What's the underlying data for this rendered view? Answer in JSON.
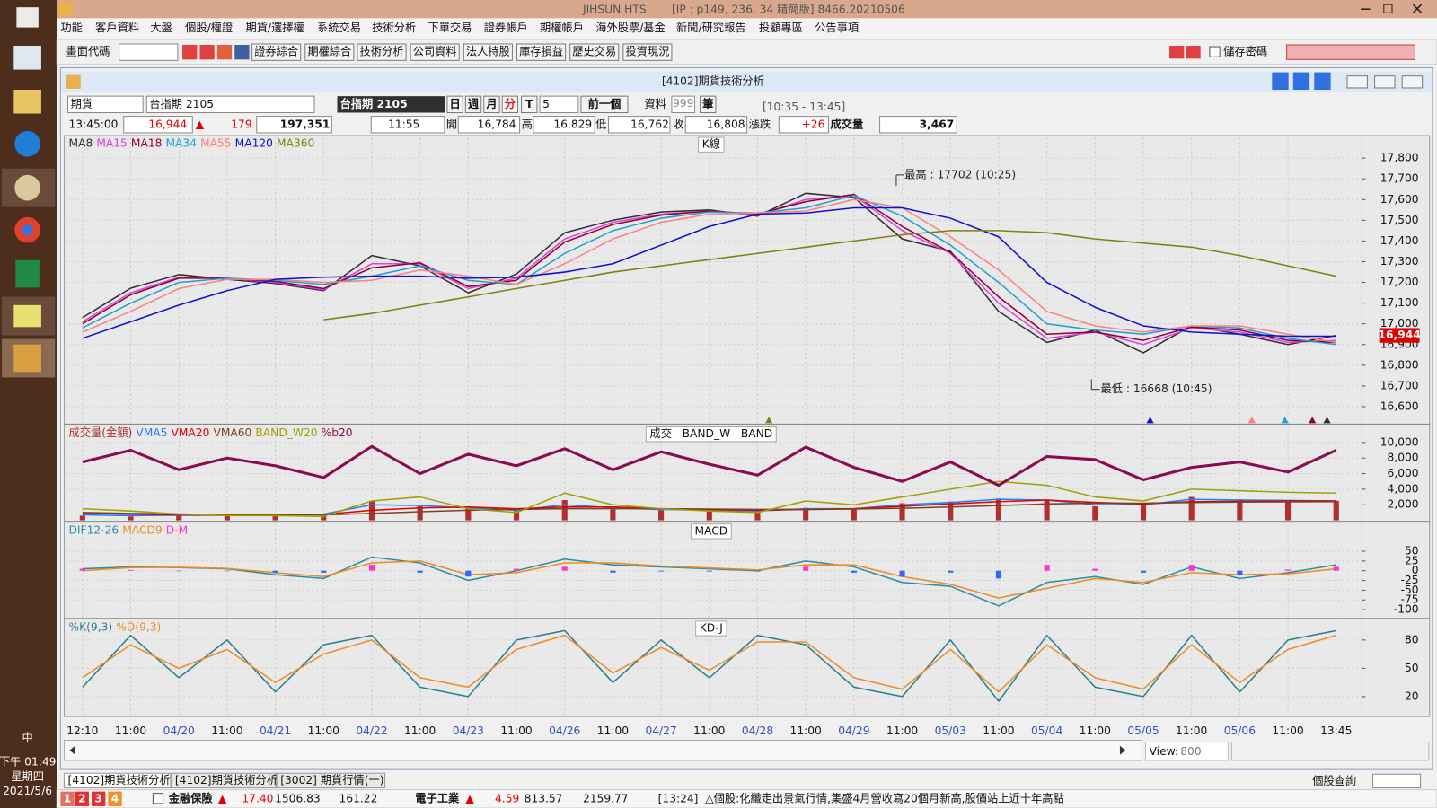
{
  "taskbar": {
    "ime": "中",
    "time": "下午 01:49",
    "weekday": "星期四",
    "date": "2021/5/6"
  },
  "app": {
    "title": "JIHSUN HTS",
    "info": "[IP : p149, 236, 34 精簡版] 8466.20210506"
  },
  "menu": [
    "功能",
    "客戶資料",
    "大盤",
    "個股/權證",
    "期貨/選擇權",
    "系統交易",
    "技術分析",
    "下單交易",
    "證券帳戶",
    "期權帳戶",
    "海外股票/基金",
    "新聞/研究報告",
    "投顧專區",
    "公告事項"
  ],
  "toolbar": {
    "code_label": "畫面代碼",
    "buttons": [
      "證券綜合",
      "期權綜合",
      "技術分析",
      "公司資料",
      "法人持股",
      "庫存損益",
      "歷史交易",
      "投資現況"
    ],
    "save_password": "儲存密碼"
  },
  "window": {
    "title": "[4102]期貨技術分析",
    "market": "期貨",
    "symbol": "台指期 2105",
    "symbol_name": "台指期 2105",
    "periods": [
      "日",
      "週",
      "月",
      "分",
      "T"
    ],
    "interval": "5",
    "prev": "前一個",
    "data_label": "資料",
    "data_count": "999",
    "data_unit": "筆",
    "time_range": "[10:35 - 13:45]"
  },
  "quote": {
    "time": "13:45:00",
    "last": "16,944",
    "arrow": "▲",
    "change": "179",
    "volume_total": "197,351",
    "bar_time": "11:55",
    "open_label": "開",
    "open": "16,784",
    "high_label": "高",
    "high": "16,829",
    "low_label": "低",
    "low": "16,762",
    "close_label": "收",
    "close": "16,808",
    "change_label": "漲跌",
    "bar_change": "+26",
    "volume_label": "成交量",
    "bar_volume": "3,467"
  },
  "chart_data": [
    {
      "type": "line",
      "title": "K線",
      "categories": [
        "12:10",
        "11:00",
        "04/20",
        "11:00",
        "04/21",
        "11:00",
        "04/22",
        "11:00",
        "04/23",
        "11:00",
        "04/26",
        "11:00",
        "04/27",
        "11:00",
        "04/28",
        "11:00",
        "04/29",
        "11:00",
        "05/03",
        "11:00",
        "05/04",
        "11:00",
        "05/05",
        "11:00",
        "05/06",
        "11:00",
        "13:45"
      ],
      "series": [
        {
          "name": "MA8",
          "color": "#303030",
          "values": [
            17030,
            17172,
            17238,
            17215,
            17195,
            17160,
            17330,
            17280,
            17150,
            17240,
            17440,
            17500,
            17540,
            17550,
            17520,
            17630,
            17610,
            17410,
            17350,
            17060,
            16910,
            16970,
            16860,
            16990,
            16950,
            16900,
            16944
          ]
        },
        {
          "name": "MA15",
          "color": "#e040e0",
          "values": [
            17010,
            17150,
            17225,
            17220,
            17200,
            17165,
            17290,
            17290,
            17170,
            17220,
            17410,
            17490,
            17530,
            17545,
            17525,
            17600,
            17620,
            17450,
            17340,
            17100,
            16930,
            16960,
            16900,
            16980,
            16960,
            16910,
            16920
          ]
        },
        {
          "name": "MA18",
          "color": "#900030",
          "values": [
            17000,
            17140,
            17220,
            17220,
            17205,
            17170,
            17270,
            17295,
            17180,
            17210,
            17395,
            17480,
            17525,
            17545,
            17530,
            17590,
            17625,
            17470,
            17345,
            17130,
            16950,
            16960,
            16920,
            16985,
            16970,
            16920,
            16910
          ]
        },
        {
          "name": "MA34",
          "color": "#20a0d0",
          "values": [
            16980,
            17100,
            17200,
            17220,
            17210,
            17190,
            17230,
            17280,
            17210,
            17190,
            17340,
            17450,
            17510,
            17540,
            17535,
            17560,
            17620,
            17520,
            17380,
            17200,
            17000,
            16970,
            16950,
            16990,
            16980,
            16930,
            16900
          ]
        },
        {
          "name": "MA55",
          "color": "#ff8080",
          "values": [
            16960,
            17060,
            17170,
            17215,
            17215,
            17200,
            17210,
            17260,
            17230,
            17190,
            17290,
            17410,
            17490,
            17530,
            17535,
            17545,
            17600,
            17560,
            17420,
            17260,
            17060,
            16990,
            16960,
            16990,
            16990,
            16950,
            16910
          ]
        },
        {
          "name": "MA120",
          "color": "#1010d0",
          "values": [
            16930,
            17010,
            17090,
            17160,
            17215,
            17225,
            17230,
            17230,
            17220,
            17225,
            17250,
            17290,
            17380,
            17470,
            17530,
            17535,
            17560,
            17560,
            17510,
            17420,
            17200,
            17080,
            16990,
            16960,
            16950,
            16940,
            16940
          ]
        },
        {
          "name": "MA360",
          "color": "#808010",
          "values": [
            null,
            null,
            null,
            null,
            null,
            17020,
            17050,
            17090,
            17130,
            17170,
            17210,
            17250,
            17280,
            17310,
            17340,
            17370,
            17400,
            17430,
            17450,
            17450,
            17440,
            17410,
            17390,
            17370,
            17330,
            17280,
            17230
          ]
        }
      ],
      "ylim": [
        16520,
        17900
      ],
      "yticks": [
        {
          "value": 16600,
          "label": "16,600"
        },
        {
          "value": 16700,
          "label": "16,700"
        },
        {
          "value": 16800,
          "label": "16,800"
        },
        {
          "value": 16900,
          "label": "16,900"
        },
        {
          "value": 17000,
          "label": "17,000"
        },
        {
          "value": 17100,
          "label": "17,100"
        },
        {
          "value": 17200,
          "label": "17,200"
        },
        {
          "value": 17300,
          "label": "17,300"
        },
        {
          "value": 17400,
          "label": "17,400"
        },
        {
          "value": 17500,
          "label": "17,500"
        },
        {
          "value": 17600,
          "label": "17,600"
        },
        {
          "value": 17700,
          "label": "17,700"
        },
        {
          "value": 17800,
          "label": "17,800"
        }
      ],
      "grid": true,
      "annotations": [
        "最高 : 17702 (10:25)",
        "最低 : 16668 (10:45)"
      ]
    },
    {
      "type": "combo",
      "title": "成交   BAND_W   BAND",
      "series": [
        {
          "name": "成交量(金額)",
          "kind": "bar",
          "color": "#b03030",
          "values": [
            600,
            500,
            700,
            600,
            800,
            700,
            2500,
            1800,
            1500,
            1200,
            2600,
            1400,
            1300,
            1200,
            1100,
            1600,
            1500,
            2200,
            2400,
            2800,
            2600,
            1800,
            2000,
            3000,
            2700,
            2600,
            2500
          ]
        },
        {
          "name": "VMA5",
          "kind": "line",
          "color": "#2080ff",
          "values": [
            700,
            600,
            650,
            650,
            750,
            800,
            2000,
            1900,
            1600,
            1300,
            2000,
            1600,
            1400,
            1300,
            1200,
            1500,
            1500,
            2000,
            2300,
            2700,
            2600,
            2000,
            2000,
            2700,
            2600,
            2550,
            2500
          ]
        },
        {
          "name": "VMA20",
          "kind": "line",
          "color": "#e00000",
          "values": [
            900,
            800,
            700,
            650,
            700,
            750,
            1300,
            1600,
            1700,
            1500,
            1700,
            1700,
            1500,
            1400,
            1300,
            1400,
            1500,
            1800,
            2100,
            2400,
            2600,
            2300,
            2100,
            2400,
            2450,
            2480,
            2500
          ]
        },
        {
          "name": "VMA60",
          "kind": "line",
          "color": "#804020",
          "values": [
            1000,
            900,
            800,
            750,
            700,
            700,
            900,
            1100,
            1300,
            1400,
            1500,
            1500,
            1500,
            1450,
            1400,
            1400,
            1450,
            1550,
            1700,
            1900,
            2100,
            2200,
            2200,
            2300,
            2350,
            2380,
            2400
          ]
        },
        {
          "name": "BAND_W20",
          "kind": "line",
          "color": "#a0a000",
          "values": [
            1500,
            1200,
            800,
            600,
            600,
            500,
            2500,
            3000,
            1500,
            1000,
            3500,
            2000,
            1500,
            1200,
            1000,
            2500,
            2000,
            3000,
            4000,
            5000,
            4500,
            3000,
            2500,
            4000,
            3800,
            3600,
            3500
          ]
        },
        {
          "name": "%b20",
          "kind": "line",
          "width": 3,
          "color": "#8b0a50",
          "values": [
            7500,
            9000,
            6500,
            8000,
            7000,
            5500,
            9500,
            6000,
            8500,
            7000,
            9200,
            6500,
            8800,
            7200,
            5800,
            9400,
            6800,
            5000,
            7500,
            4500,
            8200,
            7800,
            5200,
            6800,
            7500,
            6200,
            9000
          ]
        }
      ],
      "ylim": [
        0,
        12000
      ],
      "yticks": [
        {
          "value": 2000,
          "label": "2,000"
        },
        {
          "value": 4000,
          "label": "4,000"
        },
        {
          "value": 6000,
          "label": "6,000"
        },
        {
          "value": 8000,
          "label": "8,000"
        },
        {
          "value": 10000,
          "label": "10,000"
        }
      ],
      "grid": true
    },
    {
      "type": "combo",
      "title": "MACD",
      "series": [
        {
          "name": "DIF12-26",
          "kind": "line",
          "color": "#2a8fa0",
          "values": [
            5,
            10,
            8,
            5,
            -10,
            -20,
            35,
            20,
            -25,
            0,
            30,
            15,
            10,
            5,
            0,
            25,
            10,
            -30,
            -40,
            -90,
            -30,
            -15,
            -35,
            10,
            -20,
            -5,
            15
          ]
        },
        {
          "name": "MACD9",
          "kind": "line",
          "color": "#f08a24",
          "values": [
            0,
            8,
            9,
            6,
            -5,
            -15,
            20,
            25,
            -10,
            -5,
            20,
            20,
            12,
            7,
            2,
            15,
            15,
            -15,
            -35,
            -70,
            -45,
            -20,
            -30,
            -5,
            -10,
            -8,
            5
          ]
        },
        {
          "name": "D-M",
          "kind": "bar",
          "color": "#ff33cc",
          "negative_color": "#3366ff",
          "values": [
            5,
            2,
            -1,
            -1,
            -5,
            -5,
            15,
            -5,
            -15,
            5,
            10,
            -5,
            -2,
            -2,
            -2,
            10,
            -5,
            -15,
            -5,
            -20,
            15,
            5,
            -5,
            15,
            -10,
            3,
            10
          ]
        }
      ],
      "ylim": [
        -120,
        120
      ],
      "yticks": [
        -100,
        -75,
        -50,
        -25,
        0,
        25,
        50
      ],
      "grid": true
    },
    {
      "type": "combo",
      "title": "KD-J",
      "series": [
        {
          "name": "%K(9,3)",
          "kind": "line",
          "color": "#2a7f8f",
          "values": [
            30,
            85,
            40,
            80,
            25,
            75,
            85,
            30,
            20,
            80,
            90,
            35,
            80,
            40,
            85,
            75,
            30,
            20,
            80,
            15,
            85,
            30,
            20,
            85,
            25,
            80,
            90
          ]
        },
        {
          "name": "%D(9,3)",
          "kind": "line",
          "color": "#f08a24",
          "values": [
            40,
            75,
            50,
            70,
            35,
            65,
            80,
            40,
            30,
            70,
            85,
            45,
            72,
            48,
            78,
            78,
            40,
            28,
            70,
            25,
            75,
            40,
            28,
            75,
            35,
            70,
            85
          ]
        }
      ],
      "ylim": [
        0,
        100
      ],
      "yticks": [
        20,
        50,
        80
      ],
      "grid": true
    }
  ],
  "view": {
    "label": "View:",
    "value": "800"
  },
  "tabs": [
    "[4102]期貨技術分析",
    "[4102]期貨技術分析",
    "[3002] 期貨行情(一)"
  ],
  "query": "個股查詢",
  "pages": [
    "1",
    "2",
    "3",
    "4"
  ],
  "ticker": [
    {
      "name": "金融保險",
      "arrow": "▲",
      "change": "17.40",
      "index": "1506.83",
      "amount": "161.22"
    },
    {
      "name": "電子工業",
      "arrow": "▲",
      "change": "4.59",
      "index": "813.57",
      "amount": "2159.77"
    }
  ],
  "news": "[13:24]  △個股:化纖走出景氣行情,集盛4月營收寫20個月新高,股價站上近十年高點"
}
